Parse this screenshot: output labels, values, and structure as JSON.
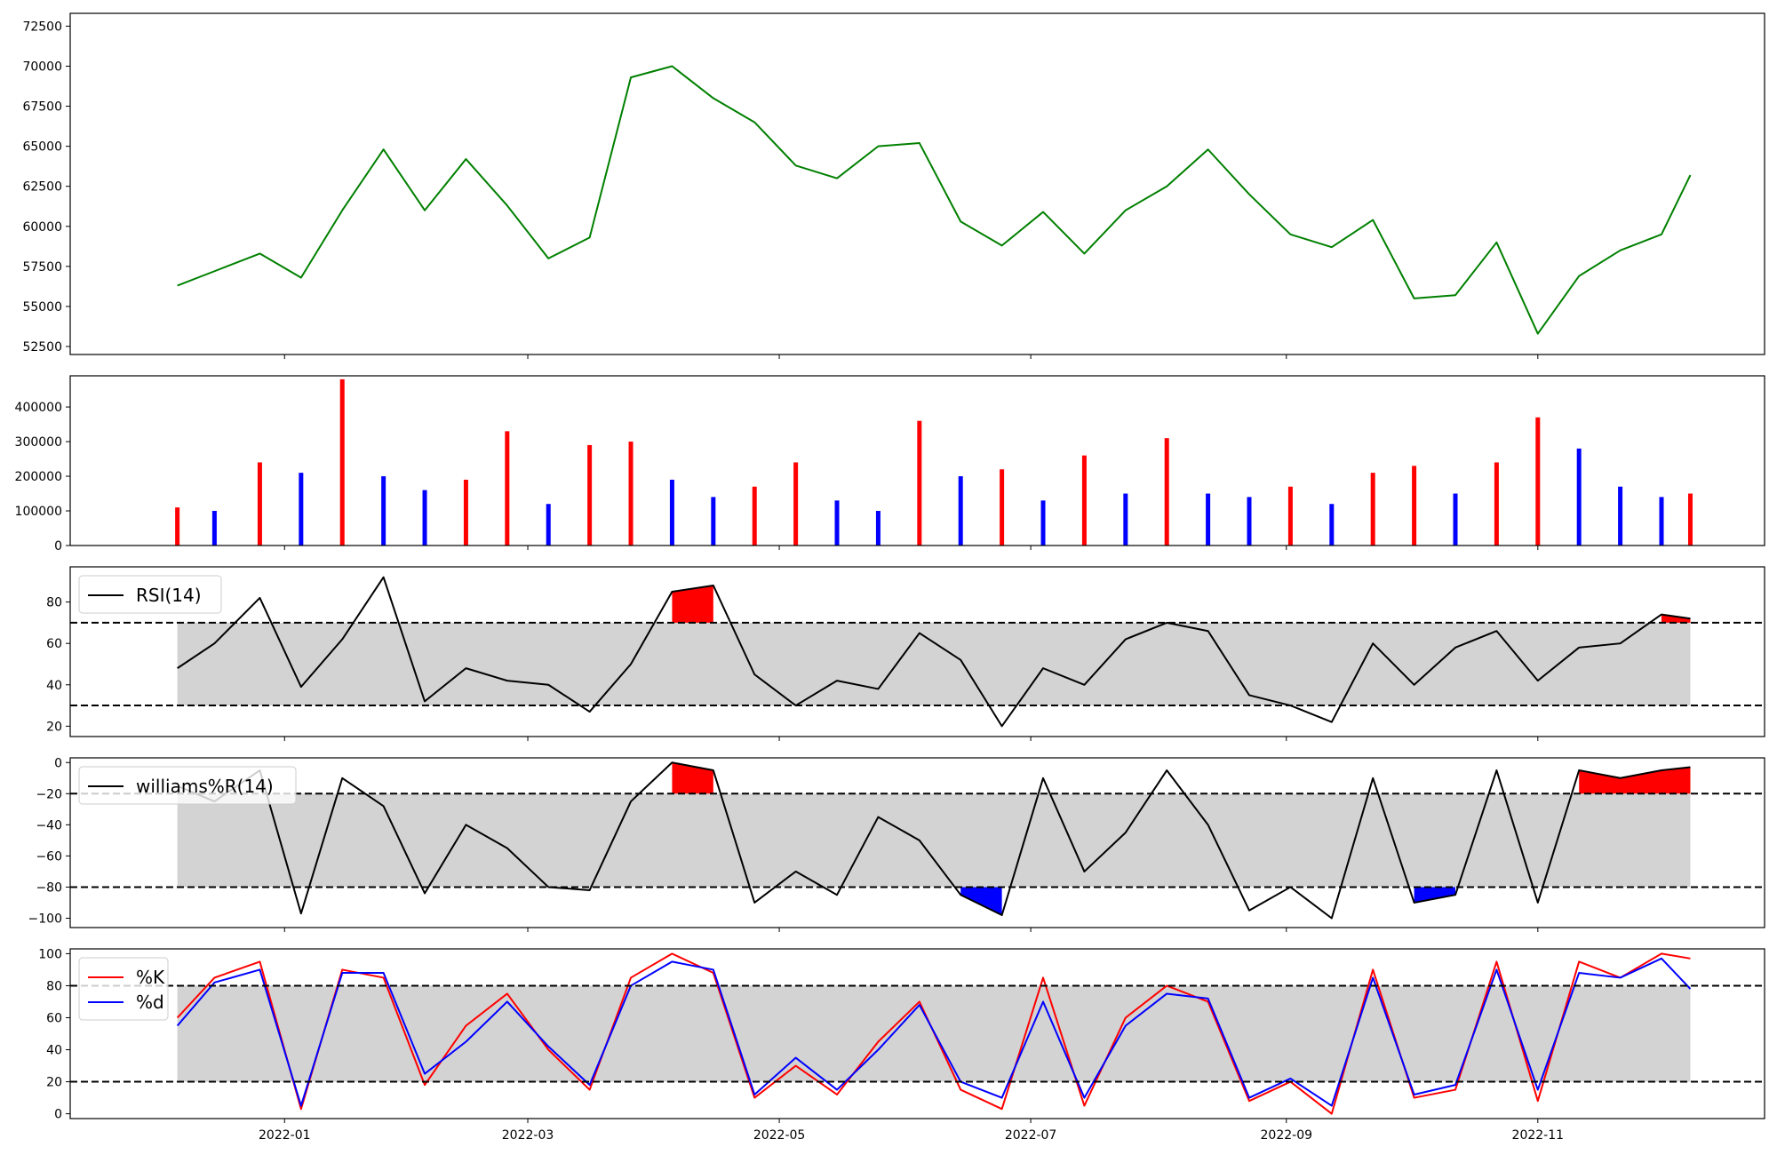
{
  "chart_data": [
    {
      "id": "price",
      "type": "line",
      "ylim": [
        52000,
        73300
      ],
      "yticks": [
        "52500",
        "55000",
        "57500",
        "60000",
        "62500",
        "65000",
        "67500",
        "70000",
        "72500"
      ],
      "colors": {
        "line": "#008000"
      },
      "x": [
        "2021-12-06",
        "2021-12-15",
        "2021-12-26",
        "2022-01-05",
        "2022-01-15",
        "2022-01-25",
        "2022-02-04",
        "2022-02-14",
        "2022-02-24",
        "2022-03-06",
        "2022-03-16",
        "2022-03-26",
        "2022-04-05",
        "2022-04-15",
        "2022-04-25",
        "2022-05-05",
        "2022-05-15",
        "2022-05-25",
        "2022-06-04",
        "2022-06-14",
        "2022-06-24",
        "2022-07-04",
        "2022-07-14",
        "2022-07-24",
        "2022-08-03",
        "2022-08-13",
        "2022-08-23",
        "2022-09-02",
        "2022-09-12",
        "2022-09-22",
        "2022-10-02",
        "2022-10-12",
        "2022-10-22",
        "2022-11-01",
        "2022-11-11",
        "2022-11-21",
        "2022-12-01",
        "2022-12-08"
      ],
      "series": [
        {
          "values": [
            56300,
            57200,
            58300,
            56800,
            61000,
            64800,
            61000,
            64200,
            61300,
            58000,
            59300,
            69300,
            70000,
            68000,
            66500,
            63800,
            63000,
            65000,
            65200,
            60300,
            58800,
            60900,
            58300,
            61000,
            62500,
            64800,
            62000,
            59500,
            58700,
            60400,
            55500,
            55700,
            59000,
            53300,
            56900,
            58500,
            59500,
            63200
          ]
        }
      ]
    },
    {
      "id": "volume",
      "type": "bar",
      "ylim": [
        0,
        490000
      ],
      "yticks": [
        "0",
        "100000",
        "200000",
        "300000",
        "400000"
      ],
      "colors": {
        "up": "#ff0000",
        "down": "#0000ff",
        "flat": "#000000"
      },
      "x": [
        "2021-12-06",
        "2021-12-15",
        "2021-12-26",
        "2022-01-05",
        "2022-01-15",
        "2022-01-25",
        "2022-02-04",
        "2022-02-14",
        "2022-02-24",
        "2022-03-06",
        "2022-03-16",
        "2022-03-26",
        "2022-04-05",
        "2022-04-15",
        "2022-04-25",
        "2022-05-05",
        "2022-05-15",
        "2022-05-25",
        "2022-06-04",
        "2022-06-14",
        "2022-06-24",
        "2022-07-04",
        "2022-07-14",
        "2022-07-24",
        "2022-08-03",
        "2022-08-13",
        "2022-08-23",
        "2022-09-02",
        "2022-09-12",
        "2022-09-22",
        "2022-10-02",
        "2022-10-12",
        "2022-10-22",
        "2022-11-01",
        "2022-11-11",
        "2022-11-21",
        "2022-12-01",
        "2022-12-08"
      ],
      "series": [
        {
          "values": [
            110000,
            100000,
            240000,
            210000,
            480000,
            200000,
            160000,
            190000,
            330000,
            120000,
            290000,
            300000,
            190000,
            140000,
            170000,
            240000,
            130000,
            100000,
            360000,
            200000,
            220000,
            130000,
            260000,
            150000,
            310000,
            150000,
            140000,
            170000,
            120000,
            210000,
            230000,
            150000,
            240000,
            370000,
            280000,
            170000,
            140000,
            150000
          ]
        }
      ]
    },
    {
      "id": "rsi",
      "type": "line",
      "ylim": [
        15,
        97
      ],
      "yticks": [
        "20",
        "40",
        "60",
        "80"
      ],
      "bands": [
        30,
        70
      ],
      "colors": {
        "line": "#000000",
        "above": "#ff0000",
        "below": "#0000ff",
        "band": "#d3d3d3"
      },
      "legend": [
        "RSI(14)"
      ],
      "x": [
        "2021-12-06",
        "2021-12-15",
        "2021-12-26",
        "2022-01-05",
        "2022-01-15",
        "2022-01-25",
        "2022-02-04",
        "2022-02-14",
        "2022-02-24",
        "2022-03-06",
        "2022-03-16",
        "2022-03-26",
        "2022-04-05",
        "2022-04-15",
        "2022-04-25",
        "2022-05-05",
        "2022-05-15",
        "2022-05-25",
        "2022-06-04",
        "2022-06-14",
        "2022-06-24",
        "2022-07-04",
        "2022-07-14",
        "2022-07-24",
        "2022-08-03",
        "2022-08-13",
        "2022-08-23",
        "2022-09-02",
        "2022-09-12",
        "2022-09-22",
        "2022-10-02",
        "2022-10-12",
        "2022-10-22",
        "2022-11-01",
        "2022-11-11",
        "2022-11-21",
        "2022-12-01",
        "2022-12-08"
      ],
      "series": [
        {
          "name": "RSI(14)",
          "values": [
            48,
            60,
            82,
            39,
            62,
            92,
            32,
            48,
            42,
            40,
            27,
            50,
            85,
            88,
            45,
            30,
            42,
            38,
            65,
            52,
            20,
            48,
            40,
            62,
            70,
            66,
            35,
            30,
            22,
            60,
            40,
            58,
            66,
            42,
            58,
            60,
            74,
            72
          ]
        }
      ]
    },
    {
      "id": "williams",
      "type": "line",
      "ylim": [
        -106,
        3
      ],
      "yticks": [
        "-100",
        "-80",
        "-60",
        "-40",
        "-20",
        "0"
      ],
      "bands": [
        -80,
        -20
      ],
      "colors": {
        "line": "#000000",
        "above": "#ff0000",
        "below": "#0000ff",
        "band": "#d3d3d3"
      },
      "legend": [
        "williams%R(14)"
      ],
      "x": [
        "2021-12-06",
        "2021-12-15",
        "2021-12-26",
        "2022-01-05",
        "2022-01-15",
        "2022-01-25",
        "2022-02-04",
        "2022-02-14",
        "2022-02-24",
        "2022-03-06",
        "2022-03-16",
        "2022-03-26",
        "2022-04-05",
        "2022-04-15",
        "2022-04-25",
        "2022-05-05",
        "2022-05-15",
        "2022-05-25",
        "2022-06-04",
        "2022-06-14",
        "2022-06-24",
        "2022-07-04",
        "2022-07-14",
        "2022-07-24",
        "2022-08-03",
        "2022-08-13",
        "2022-08-23",
        "2022-09-02",
        "2022-09-12",
        "2022-09-22",
        "2022-10-02",
        "2022-10-12",
        "2022-10-22",
        "2022-11-01",
        "2022-11-11",
        "2022-11-21",
        "2022-12-01",
        "2022-12-08"
      ],
      "series": [
        {
          "name": "williams%R(14)",
          "values": [
            -15,
            -25,
            -5,
            -97,
            -10,
            -28,
            -84,
            -40,
            -55,
            -80,
            -82,
            -25,
            0,
            -5,
            -90,
            -70,
            -85,
            -35,
            -50,
            -85,
            -98,
            -10,
            -70,
            -45,
            -5,
            -40,
            -95,
            -80,
            -100,
            -10,
            -90,
            -85,
            -5,
            -90,
            -5,
            -10,
            -5,
            -3
          ]
        }
      ]
    },
    {
      "id": "stochastic",
      "type": "line",
      "ylim": [
        -3,
        103
      ],
      "yticks": [
        "0",
        "20",
        "40",
        "60",
        "80",
        "100"
      ],
      "bands": [
        20,
        80
      ],
      "colors": {
        "band": "#d3d3d3"
      },
      "legend": [
        "%K",
        "%d"
      ],
      "x": [
        "2021-12-06",
        "2021-12-15",
        "2021-12-26",
        "2022-01-05",
        "2022-01-15",
        "2022-01-25",
        "2022-02-04",
        "2022-02-14",
        "2022-02-24",
        "2022-03-06",
        "2022-03-16",
        "2022-03-26",
        "2022-04-05",
        "2022-04-15",
        "2022-04-25",
        "2022-05-05",
        "2022-05-15",
        "2022-05-25",
        "2022-06-04",
        "2022-06-14",
        "2022-06-24",
        "2022-07-04",
        "2022-07-14",
        "2022-07-24",
        "2022-08-03",
        "2022-08-13",
        "2022-08-23",
        "2022-09-02",
        "2022-09-12",
        "2022-09-22",
        "2022-10-02",
        "2022-10-12",
        "2022-10-22",
        "2022-11-01",
        "2022-11-11",
        "2022-11-21",
        "2022-12-01",
        "2022-12-08"
      ],
      "series": [
        {
          "name": "%K",
          "color": "#ff0000",
          "values": [
            60,
            85,
            95,
            3,
            90,
            85,
            18,
            55,
            75,
            40,
            15,
            85,
            100,
            88,
            10,
            30,
            12,
            45,
            70,
            15,
            3,
            85,
            5,
            60,
            80,
            70,
            8,
            20,
            0,
            90,
            10,
            15,
            95,
            8,
            95,
            85,
            100,
            97
          ]
        },
        {
          "name": "%d",
          "color": "#0000ff",
          "values": [
            55,
            82,
            90,
            5,
            88,
            88,
            25,
            45,
            70,
            42,
            18,
            80,
            95,
            90,
            12,
            35,
            15,
            40,
            68,
            20,
            10,
            70,
            10,
            55,
            75,
            72,
            10,
            22,
            5,
            85,
            12,
            18,
            90,
            15,
            88,
            85,
            97,
            78
          ]
        }
      ]
    }
  ],
  "x_axis": {
    "min": "2021-11-10",
    "max": "2022-12-26",
    "ticks": [
      "2022-01",
      "2022-03",
      "2022-05",
      "2022-07",
      "2022-09",
      "2022-11"
    ]
  },
  "legend_entries": [
    {
      "panel": "rsi",
      "label": "RSI(14)"
    },
    {
      "panel": "williams",
      "label": "williams%R(14)"
    },
    {
      "panel": "stochastic",
      "label": "%K"
    },
    {
      "panel": "stochastic",
      "label": "%d"
    }
  ]
}
